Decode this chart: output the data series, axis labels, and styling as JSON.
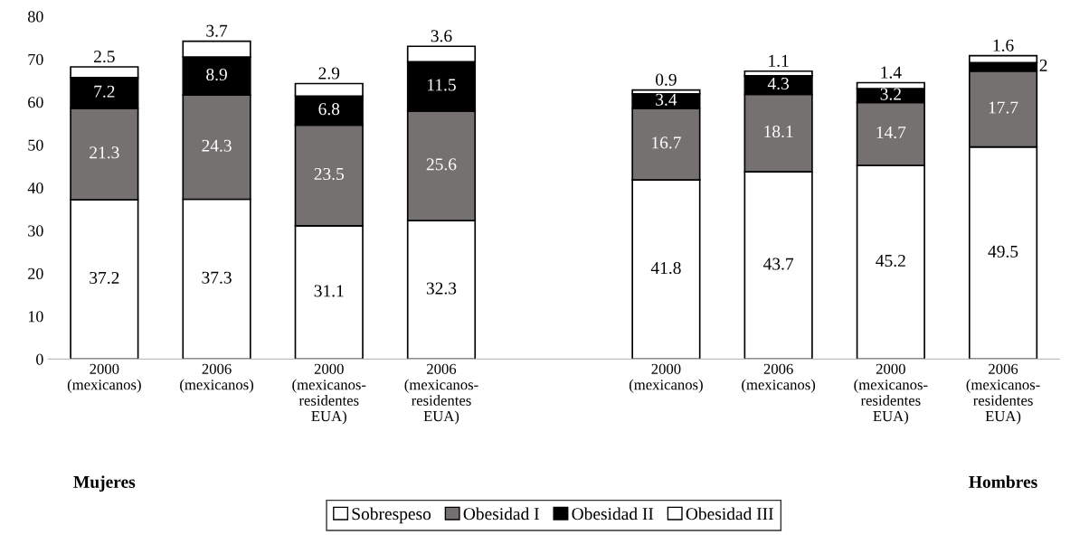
{
  "chart_data": {
    "type": "bar",
    "stacked": true,
    "categories": [
      "2000\n(mexicanos)",
      "2006\n(mexicanos)",
      "2000\n(mexicanos-\nresidentes\nEUA)",
      "2006\n(mexicanos-\nresidentes\nEUA)",
      null,
      "2000\n(mexicanos)",
      "2006\n(mexicanos)",
      "2000\n(mexicanos-\nresidentes\nEUA)",
      "2006\n(mexicanos-\nresidentes\nEUA)"
    ],
    "series": [
      {
        "name": "Sobrespeso",
        "color": "#ffffff",
        "values": [
          37.2,
          37.3,
          31.1,
          32.3,
          null,
          41.8,
          43.7,
          45.2,
          49.5
        ]
      },
      {
        "name": "Obesidad I",
        "color": "#767171",
        "values": [
          21.3,
          24.3,
          23.5,
          25.6,
          null,
          16.7,
          18.1,
          14.7,
          17.7
        ]
      },
      {
        "name": "Obesidad II",
        "color": "#000000",
        "values": [
          7.2,
          8.9,
          6.8,
          11.5,
          null,
          3.4,
          4.3,
          3.2,
          2
        ]
      },
      {
        "name": "Obesidad III",
        "color": "#ffffff",
        "values": [
          2.5,
          3.7,
          2.9,
          3.6,
          null,
          0.9,
          1.1,
          1.4,
          1.6
        ]
      }
    ],
    "ylim": [
      0,
      80
    ],
    "yticks": [
      0,
      10,
      20,
      30,
      40,
      50,
      60,
      70,
      80
    ],
    "data_labels": true,
    "legend": "bottom",
    "grid": false,
    "annotations": [
      "Mujeres",
      "Hombres"
    ]
  }
}
